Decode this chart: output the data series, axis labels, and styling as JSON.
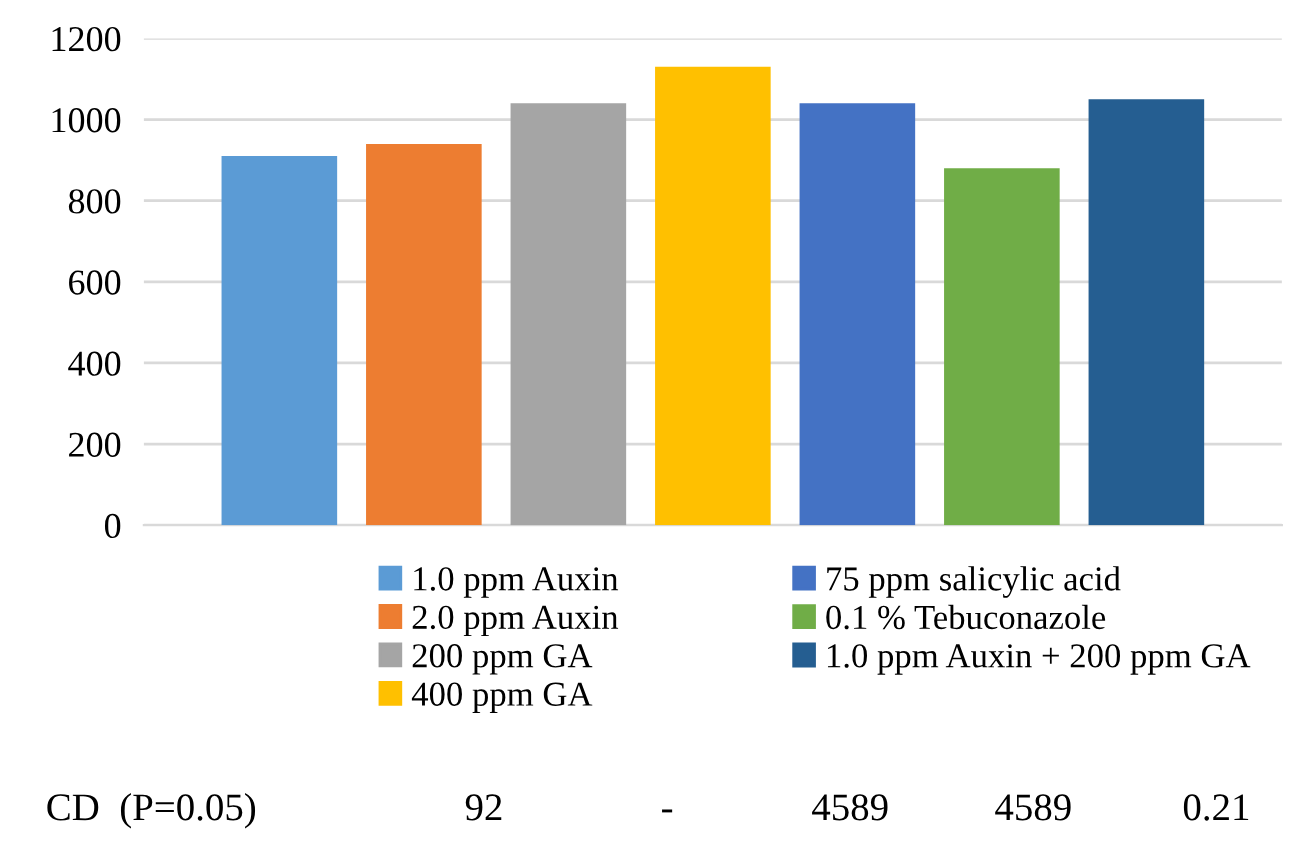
{
  "chart_data": {
    "type": "bar",
    "categories": [
      null
    ],
    "series": [
      {
        "name": "1.0 ppm Auxin",
        "color": "#5b9bd5",
        "values": [
          910
        ]
      },
      {
        "name": "2.0 ppm Auxin",
        "color": "#ed7d31",
        "values": [
          940
        ]
      },
      {
        "name": "200 ppm GA",
        "color": "#a5a5a5",
        "values": [
          1040
        ]
      },
      {
        "name": "400 ppm GA",
        "color": "#ffc000",
        "values": [
          1130
        ]
      },
      {
        "name": "75 ppm salicylic acid",
        "color": "#4472c4",
        "values": [
          1040
        ]
      },
      {
        "name": "0.1 % Tebuconazole",
        "color": "#70ad47",
        "values": [
          880
        ]
      },
      {
        "name": "1.0 ppm Auxin + 200 ppm GA",
        "color": "#255e91",
        "values": [
          1050
        ]
      }
    ],
    "ylim": [
      0,
      1200
    ],
    "yticks": [
      0,
      200,
      400,
      600,
      800,
      1000,
      1200
    ],
    "grid": "y",
    "legend": "bottom",
    "annotations": [
      "CD  (P=0.05)",
      "92",
      "-",
      "4589",
      "4589",
      "0.21"
    ]
  }
}
